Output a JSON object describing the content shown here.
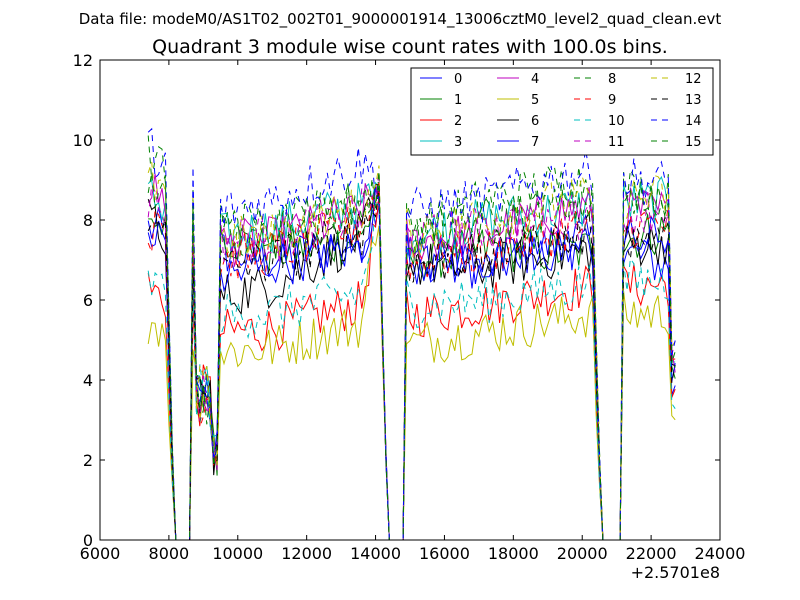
{
  "chart_data": {
    "type": "line",
    "suptitle": "Data file: modeM0/AS1T02_002T01_9000001914_13006cztM0_level2_quad_clean.evt",
    "title": "Quadrant 3 module wise count rates with 100.0s bins.",
    "xlabel": "",
    "ylabel": "",
    "x_offset_label": "+2.5701e8",
    "xlim": [
      6000,
      24000
    ],
    "ylim": [
      0,
      12
    ],
    "xticks": [
      6000,
      8000,
      10000,
      12000,
      14000,
      16000,
      18000,
      20000,
      22000,
      24000
    ],
    "yticks": [
      0,
      2,
      4,
      6,
      8,
      10,
      12
    ],
    "grid": false,
    "legend_position": "upper-right",
    "legend_columns": 4,
    "x_start": 7400,
    "x_end": 22700,
    "bin_step": 100,
    "gaps": [
      [
        8150,
        8600
      ],
      [
        14350,
        14850
      ],
      [
        20550,
        21150
      ]
    ],
    "dip_range": [
      8800,
      9400
    ],
    "series": [
      {
        "name": "0",
        "color": "#0000ff",
        "style": "solid",
        "values": [
          7.8,
          7.2,
          7.0,
          7.5,
          8.7,
          7.2,
          6.8,
          7.6,
          6.8
        ]
      },
      {
        "name": "1",
        "color": "#008000",
        "style": "solid",
        "values": [
          8.2,
          7.6,
          7.2,
          7.5,
          8.8,
          7.0,
          7.3,
          7.2,
          7.8
        ]
      },
      {
        "name": "2",
        "color": "#ff0000",
        "style": "solid",
        "values": [
          6.3,
          5.2,
          5.3,
          5.9,
          8.4,
          5.6,
          5.9,
          6.3,
          6.4
        ]
      },
      {
        "name": "3",
        "color": "#00bfbf",
        "style": "solid",
        "values": [
          8.6,
          7.6,
          7.8,
          8.4,
          8.7,
          7.6,
          8.0,
          8.3,
          8.5
        ]
      },
      {
        "name": "4",
        "color": "#bf00bf",
        "style": "solid",
        "values": [
          8.8,
          7.4,
          7.5,
          8.2,
          8.9,
          7.4,
          7.7,
          8.3,
          8.2
        ]
      },
      {
        "name": "5",
        "color": "#bfbf00",
        "style": "solid",
        "values": [
          5.5,
          4.7,
          4.8,
          5.4,
          8.4,
          4.9,
          5.2,
          5.6,
          5.7
        ]
      },
      {
        "name": "6",
        "color": "#000000",
        "style": "solid",
        "values": [
          8.0,
          6.1,
          6.4,
          7.6,
          8.6,
          6.9,
          6.8,
          7.2,
          7.5
        ]
      },
      {
        "name": "7",
        "color": "#0000ff",
        "style": "solid",
        "values": [
          7.7,
          6.6,
          6.9,
          7.3,
          8.7,
          7.0,
          6.9,
          7.3,
          7.6
        ]
      },
      {
        "name": "8",
        "color": "#008000",
        "style": "dashed",
        "values": [
          9.6,
          7.8,
          7.9,
          8.5,
          8.9,
          7.8,
          8.5,
          9.0,
          8.6
        ]
      },
      {
        "name": "9",
        "color": "#ff0000",
        "style": "dashed",
        "values": [
          7.8,
          7.0,
          7.2,
          7.9,
          8.7,
          7.0,
          7.2,
          7.8,
          7.9
        ]
      },
      {
        "name": "10",
        "color": "#00bfbf",
        "style": "dashed",
        "values": [
          6.4,
          5.6,
          5.7,
          6.2,
          8.5,
          5.9,
          6.0,
          6.4,
          6.5
        ]
      },
      {
        "name": "11",
        "color": "#bf00bf",
        "style": "dashed",
        "values": [
          8.5,
          7.5,
          7.6,
          8.2,
          8.8,
          7.5,
          7.8,
          8.1,
          8.3
        ]
      },
      {
        "name": "12",
        "color": "#bfbf00",
        "style": "dashed",
        "values": [
          9.0,
          7.5,
          7.6,
          8.3,
          8.9,
          7.6,
          8.1,
          8.5,
          8.6
        ]
      },
      {
        "name": "13",
        "color": "#000000",
        "style": "dashed",
        "values": [
          8.0,
          6.8,
          7.0,
          7.7,
          8.6,
          6.9,
          7.1,
          7.6,
          7.6
        ]
      },
      {
        "name": "14",
        "color": "#0000ff",
        "style": "dashed",
        "values": [
          9.8,
          8.2,
          8.5,
          9.4,
          9.0,
          8.2,
          8.5,
          9.2,
          8.9
        ]
      },
      {
        "name": "15",
        "color": "#008000",
        "style": "dashed",
        "values": [
          8.8,
          7.6,
          7.8,
          8.4,
          8.8,
          7.6,
          8.0,
          8.4,
          8.4
        ]
      }
    ]
  }
}
